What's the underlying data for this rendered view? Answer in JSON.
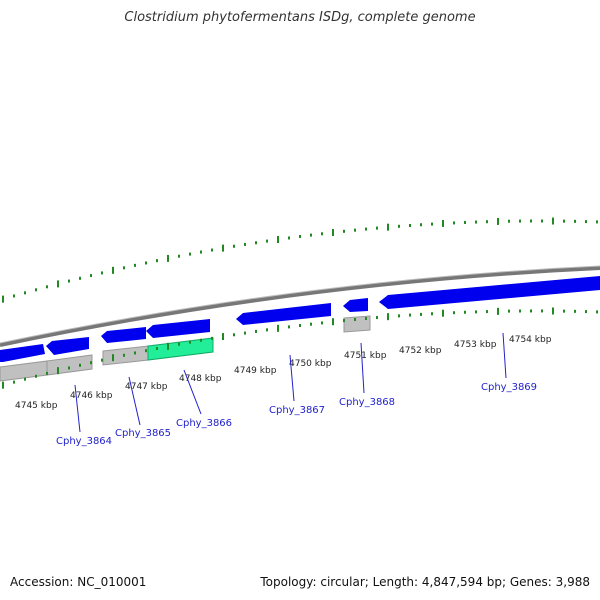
{
  "title": "Clostridium phytofermentans ISDg, complete genome",
  "footer": {
    "accession": "Accession: NC_010001",
    "summary": "Topology: circular; Length: 4,847,594 bp; Genes: 3,988"
  },
  "colors": {
    "forward_gene": "#0000ee",
    "rna_gene": "#c0c0c0",
    "highlight_gene": "#22ee99",
    "tick": "#228822",
    "backbone": "#888888",
    "label": "#2222cc"
  },
  "scale_labels": [
    "4745 kbp",
    "4746 kbp",
    "4747 kbp",
    "4748 kbp",
    "4749 kbp",
    "4750 kbp",
    "4751 kbp",
    "4752 kbp",
    "4753 kbp",
    "4754 kbp"
  ],
  "genes": [
    {
      "name": "Cphy_3864"
    },
    {
      "name": "Cphy_3865"
    },
    {
      "name": "Cphy_3866"
    },
    {
      "name": "Cphy_3867"
    },
    {
      "name": "Cphy_3868"
    },
    {
      "name": "Cphy_3869"
    }
  ]
}
